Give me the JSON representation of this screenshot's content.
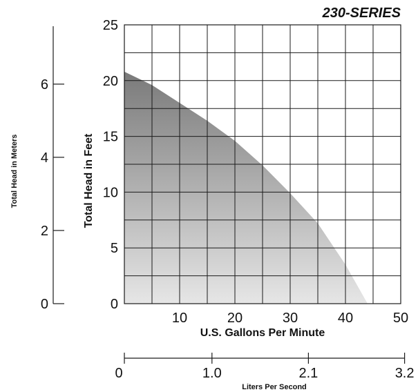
{
  "chart_data": {
    "type": "area",
    "title": "230-SERIES",
    "xlabel": "U.S. Gallons Per Minute",
    "ylabel": "Total Head in Feet",
    "xlim": [
      0,
      50
    ],
    "ylim": [
      0,
      25
    ],
    "grid": true,
    "x_ticks": [
      "10",
      "20",
      "30",
      "40",
      "50"
    ],
    "y_ticks": [
      "0",
      "5",
      "10",
      "15",
      "20",
      "25"
    ],
    "series": [
      {
        "x": [
          0,
          5,
          10,
          15,
          20,
          25,
          30,
          35,
          40,
          44
        ],
        "y": [
          20.8,
          19.6,
          18,
          16.4,
          14.6,
          12.4,
          9.9,
          7.2,
          3.5,
          0
        ]
      }
    ],
    "secondary_y_axis": {
      "label": "Total Head in Meters",
      "lim": [
        0,
        7.62
      ],
      "ticks": [
        "0",
        "2",
        "4",
        "6"
      ]
    },
    "secondary_x_axis": {
      "label": "Liters Per Second",
      "ticks": [
        "0",
        "1.0",
        "2.1",
        "3.2"
      ],
      "tick_positions_gpm": [
        0,
        15.85,
        33.3,
        50.7
      ]
    }
  }
}
